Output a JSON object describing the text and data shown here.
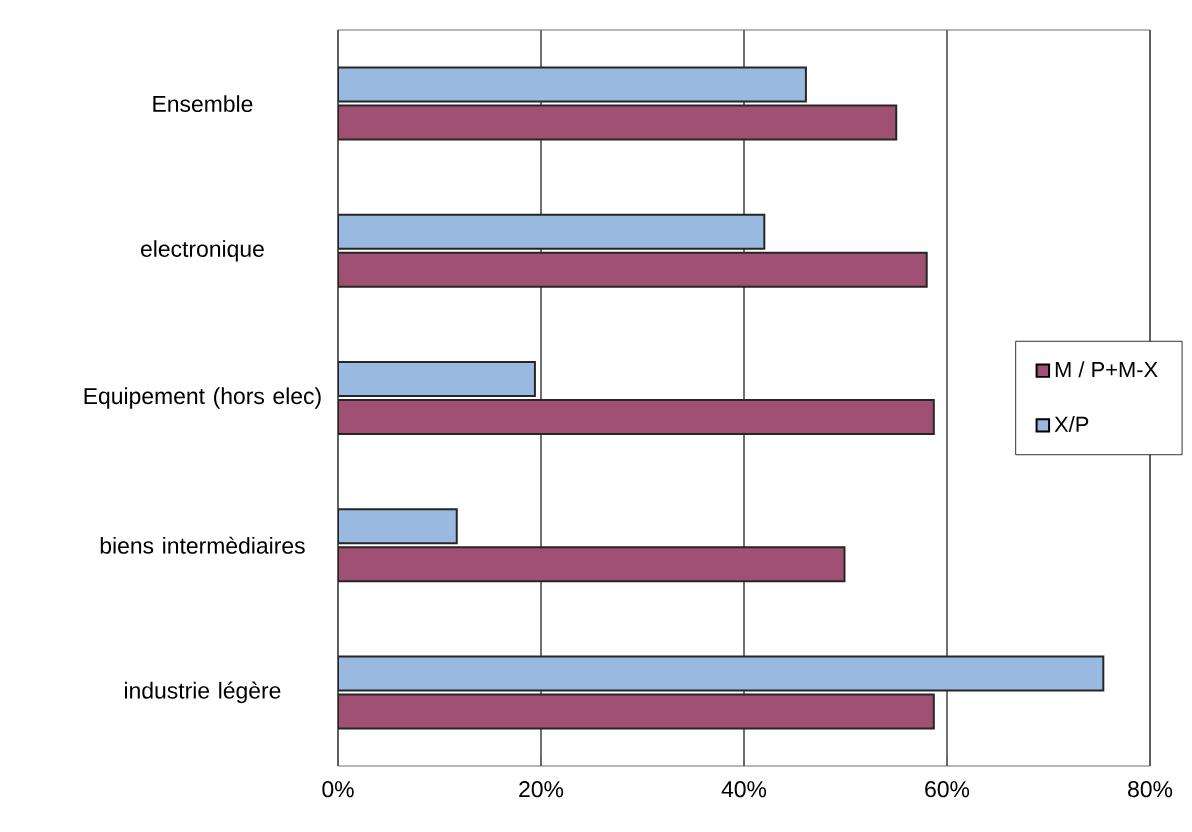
{
  "chart_data": {
    "type": "bar",
    "orientation": "horizontal",
    "categories": [
      "Ensemble",
      "electronique",
      "Equipement (hors elec)",
      "biens intermèdiaires",
      "industrie légère"
    ],
    "series": [
      {
        "name": "M / P+M-X",
        "color": "#a05073",
        "values": [
          55.0,
          58.0,
          58.7,
          49.9,
          58.7
        ]
      },
      {
        "name": "X/P",
        "color": "#99b9e1",
        "values": [
          46.1,
          42.0,
          19.4,
          11.7,
          75.4
        ]
      }
    ],
    "xlim": [
      0,
      80
    ],
    "xticks": [
      {
        "value": 0,
        "label": "0%"
      },
      {
        "value": 20,
        "label": "20%"
      },
      {
        "value": 40,
        "label": "40%"
      },
      {
        "value": 60,
        "label": "60%"
      },
      {
        "value": 80,
        "label": "80%"
      }
    ],
    "grid": "x",
    "legend": "right"
  }
}
